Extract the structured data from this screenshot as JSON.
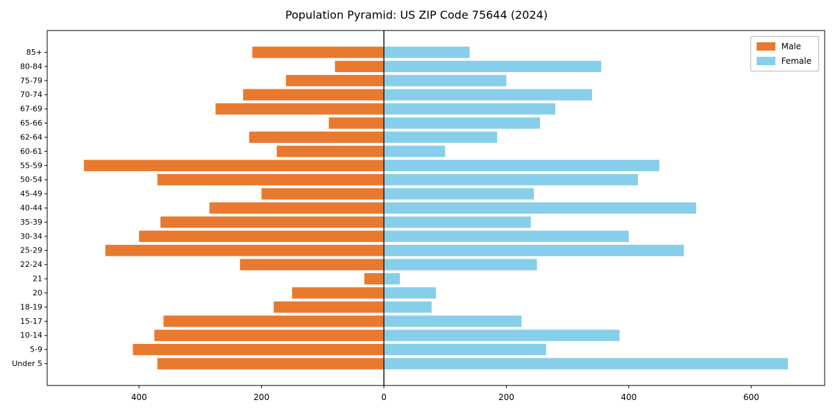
{
  "chart_data": {
    "type": "bar",
    "subtype": "population-pyramid",
    "title": "Population Pyramid: US ZIP Code 75644 (2024)",
    "orientation": "horizontal",
    "categories_bottom_to_top": [
      "Under 5",
      "5-9",
      "10-14",
      "15-17",
      "18-19",
      "20",
      "21",
      "22-24",
      "25-29",
      "30-34",
      "35-39",
      "40-44",
      "45-49",
      "50-54",
      "55-59",
      "60-61",
      "62-64",
      "65-66",
      "67-69",
      "70-74",
      "75-79",
      "80-84",
      "85+"
    ],
    "series": [
      {
        "name": "Male",
        "side": "left",
        "color": "#e8792e",
        "values": [
          370,
          410,
          375,
          360,
          180,
          150,
          32,
          235,
          455,
          400,
          365,
          285,
          200,
          370,
          490,
          175,
          220,
          90,
          275,
          230,
          160,
          80,
          215
        ]
      },
      {
        "name": "Female",
        "side": "right",
        "color": "#87ceeb",
        "values": [
          660,
          265,
          385,
          225,
          78,
          85,
          26,
          250,
          490,
          400,
          240,
          510,
          245,
          415,
          450,
          100,
          185,
          255,
          280,
          340,
          200,
          355,
          140
        ]
      }
    ],
    "xlim": [
      -550,
      720
    ],
    "x_ticks": [
      -400,
      -200,
      0,
      200,
      400,
      600
    ],
    "x_tick_labels": [
      "400",
      "200",
      "0",
      "200",
      "400",
      "600"
    ],
    "bar_height_fraction": 0.8,
    "zero_line": true,
    "grid": false,
    "legend_position": "upper right",
    "legend_entries": [
      "Male",
      "Female"
    ]
  }
}
